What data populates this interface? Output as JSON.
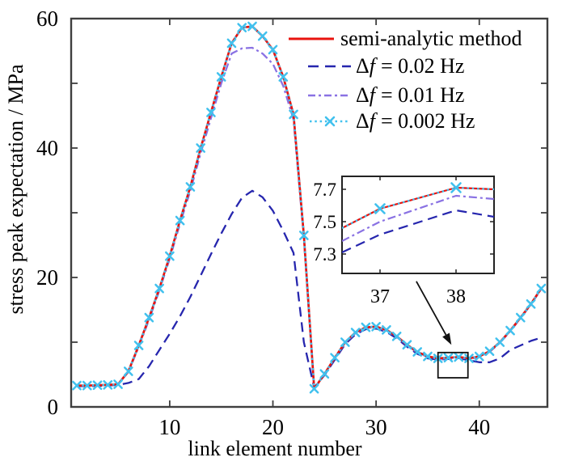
{
  "colors": {
    "background": "#ffffff",
    "frame": "#3f3f3f",
    "text": "#000000",
    "annotation": "#111111",
    "semi_analytic": "#e8130e",
    "df_002": "#2626ae",
    "df_001": "#8a72e3",
    "df_0002": "#41c1ee"
  },
  "legend": {
    "items": [
      {
        "label": "semi-analytic method"
      },
      {
        "label": "Δf = 0.02 Hz",
        "prefix": "Δ",
        "f": "f",
        "suffix": "= 0.02 Hz"
      },
      {
        "label": "Δf = 0.01 Hz",
        "prefix": "Δ",
        "f": "f",
        "suffix": "= 0.01 Hz"
      },
      {
        "label": "Δf = 0.002 Hz",
        "prefix": "Δ",
        "f": "f",
        "suffix": "= 0.002 Hz"
      }
    ]
  },
  "chart_data": {
    "type": "line",
    "title": "",
    "xlabel": "link element number",
    "ylabel": "stress peak expectation / MPa",
    "xlim": [
      0.45,
      46.6
    ],
    "ylim": [
      0,
      60
    ],
    "x_ticks": [
      10,
      20,
      30,
      40
    ],
    "y_ticks_labeled": [
      0,
      20,
      40,
      60
    ],
    "y_ticks_all": [
      0,
      10,
      20,
      30,
      40,
      50,
      60
    ],
    "grid": false,
    "legend_position": "upper right, no frame",
    "x": [
      1,
      2,
      3,
      4,
      5,
      6,
      7,
      8,
      9,
      10,
      11,
      12,
      13,
      14,
      15,
      16,
      17,
      18,
      19,
      20,
      21,
      22,
      23,
      24,
      25,
      26,
      27,
      28,
      29,
      30,
      31,
      32,
      33,
      34,
      35,
      36,
      37,
      38,
      39,
      40,
      41,
      42,
      43,
      44,
      45,
      46
    ],
    "series": [
      {
        "id": "df-002hz",
        "name": "Δf = 0.02 Hz",
        "color": "#2626ae",
        "style": "dashed",
        "dash": "12,7",
        "width": 2.3,
        "marker": null,
        "values": [
          3.2,
          3.2,
          3.25,
          3.3,
          3.4,
          3.7,
          4.3,
          6.3,
          8.8,
          11.3,
          14.0,
          17.0,
          20.3,
          23.6,
          26.8,
          29.8,
          32.3,
          33.4,
          32.4,
          30.3,
          27.2,
          23.8,
          10.0,
          3.0,
          4.9,
          7.3,
          9.7,
          11.2,
          12.0,
          12.1,
          11.6,
          10.6,
          9.3,
          8.2,
          7.5,
          7.3,
          7.4,
          7.55,
          7.2,
          6.9,
          6.9,
          7.5,
          8.8,
          9.5,
          10.2,
          10.7
        ]
      },
      {
        "id": "df-001hz",
        "name": "Δf = 0.01 Hz",
        "color": "#8a72e3",
        "style": "dashdot",
        "dash": "10,4,3,4",
        "width": 2.3,
        "marker": null,
        "values": [
          3.3,
          3.3,
          3.35,
          3.4,
          3.5,
          5.4,
          9.3,
          13.5,
          18.0,
          22.9,
          28.3,
          33.4,
          39.2,
          44.6,
          50.0,
          54.6,
          55.4,
          55.5,
          54.6,
          53.0,
          49.6,
          44.4,
          26.0,
          2.75,
          5.05,
          7.55,
          9.9,
          11.4,
          12.2,
          12.3,
          11.8,
          10.8,
          9.5,
          8.4,
          7.7,
          7.4,
          7.5,
          7.65,
          7.4,
          7.7,
          8.5,
          9.9,
          11.7,
          13.7,
          15.8,
          18.2
        ]
      },
      {
        "id": "semi-analytic",
        "name": "semi-analytic method",
        "color": "#e8130e",
        "style": "solid",
        "dash": "",
        "width": 2.7,
        "marker": null,
        "values": [
          3.3,
          3.3,
          3.35,
          3.4,
          3.5,
          5.5,
          9.5,
          13.8,
          18.3,
          23.3,
          28.8,
          34.0,
          40.0,
          45.5,
          51.0,
          56.2,
          58.6,
          58.8,
          57.3,
          55.2,
          51.0,
          45.2,
          26.5,
          2.8,
          5.1,
          7.6,
          10.0,
          11.5,
          12.3,
          12.4,
          11.9,
          10.9,
          9.6,
          8.5,
          7.8,
          7.5,
          7.6,
          7.7,
          7.5,
          7.8,
          8.6,
          10.0,
          11.8,
          13.8,
          15.9,
          18.3
        ]
      },
      {
        "id": "df-0002hz",
        "name": "Δf = 0.002 Hz",
        "color": "#41c1ee",
        "style": "dotted",
        "dash": "2.5,3.8",
        "width": 2.4,
        "marker": "x",
        "values": [
          3.3,
          3.3,
          3.35,
          3.4,
          3.5,
          5.5,
          9.5,
          13.8,
          18.3,
          23.3,
          28.8,
          34.0,
          40.0,
          45.5,
          51.0,
          56.2,
          58.6,
          58.8,
          57.3,
          55.2,
          51.0,
          45.2,
          26.5,
          2.8,
          5.1,
          7.6,
          10.0,
          11.5,
          12.3,
          12.4,
          11.9,
          10.9,
          9.6,
          8.5,
          7.8,
          7.5,
          7.6,
          7.7,
          7.5,
          7.8,
          8.6,
          10.0,
          11.8,
          13.8,
          15.9,
          18.3
        ]
      }
    ],
    "inset": {
      "xlim": [
        36.5,
        38.5
      ],
      "ylim": [
        7.18,
        7.78
      ],
      "x_ticks": [
        37,
        38
      ],
      "y_ticks": [
        7.3,
        7.5,
        7.7
      ],
      "x": [
        36.5,
        37,
        38,
        38.5
      ],
      "series": [
        {
          "id": "df-002hz",
          "values": [
            7.31,
            7.42,
            7.57,
            7.53
          ]
        },
        {
          "id": "df-001hz",
          "values": [
            7.38,
            7.5,
            7.66,
            7.64
          ]
        },
        {
          "id": "semi-analytic",
          "values": [
            7.46,
            7.58,
            7.71,
            7.7
          ]
        },
        {
          "id": "df-0002hz",
          "values": [
            7.46,
            7.58,
            7.71,
            7.7
          ],
          "marker_at_x": [
            37,
            38
          ]
        }
      ],
      "zoom_box": {
        "x1": 36.0,
        "y1": 4.5,
        "x2": 38.9,
        "y2": 8.4
      },
      "arrow": {
        "x1": 33.9,
        "y1": 19.4,
        "x2": 37.3,
        "y2": 9.6
      }
    }
  }
}
